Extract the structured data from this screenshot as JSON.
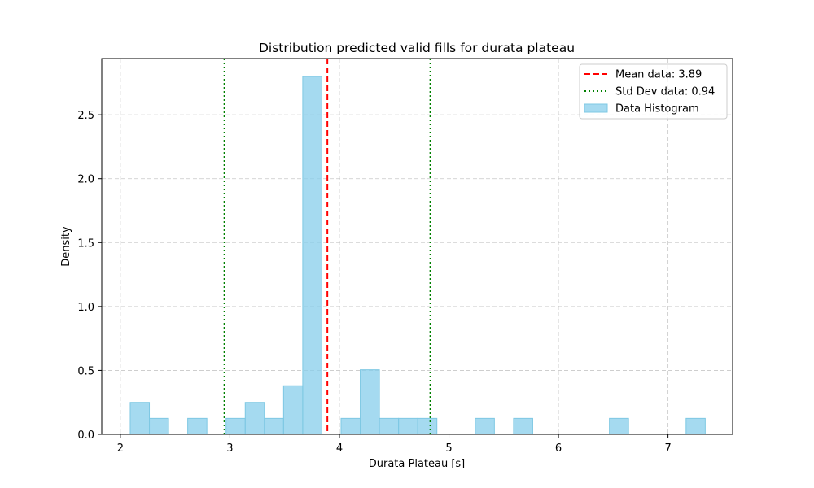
{
  "chart_data": {
    "type": "bar",
    "title": "Distribution predicted valid fills for durata plateau",
    "xlabel": "Durata Plateau [s]",
    "ylabel": "Density",
    "xlim": [
      1.83,
      7.59
    ],
    "ylim": [
      0,
      2.94
    ],
    "xticks": [
      2,
      3,
      4,
      5,
      6,
      7
    ],
    "yticks": [
      0.0,
      0.5,
      1.0,
      1.5,
      2.0,
      2.5
    ],
    "ytick_labels": [
      "0.0",
      "0.5",
      "1.0",
      "1.5",
      "2.0",
      "2.5"
    ],
    "grid": true,
    "legend_position": "top-right",
    "bin_width": 0.175,
    "bins": [
      {
        "x0": 2.09,
        "density": 0.25
      },
      {
        "x0": 2.265,
        "density": 0.125
      },
      {
        "x0": 2.44,
        "density": 0.0
      },
      {
        "x0": 2.615,
        "density": 0.125
      },
      {
        "x0": 2.79,
        "density": 0.0
      },
      {
        "x0": 2.965,
        "density": 0.125
      },
      {
        "x0": 3.14,
        "density": 0.25
      },
      {
        "x0": 3.315,
        "density": 0.125
      },
      {
        "x0": 3.49,
        "density": 0.38
      },
      {
        "x0": 3.665,
        "density": 2.8
      },
      {
        "x0": 3.84,
        "density": 0.0
      },
      {
        "x0": 4.015,
        "density": 0.125
      },
      {
        "x0": 4.19,
        "density": 0.505
      },
      {
        "x0": 4.365,
        "density": 0.125
      },
      {
        "x0": 4.54,
        "density": 0.125
      },
      {
        "x0": 4.715,
        "density": 0.125
      },
      {
        "x0": 4.89,
        "density": 0.0
      },
      {
        "x0": 5.065,
        "density": 0.0
      },
      {
        "x0": 5.24,
        "density": 0.125
      },
      {
        "x0": 5.415,
        "density": 0.0
      },
      {
        "x0": 5.59,
        "density": 0.125
      },
      {
        "x0": 5.765,
        "density": 0.0
      },
      {
        "x0": 5.94,
        "density": 0.0
      },
      {
        "x0": 6.115,
        "density": 0.0
      },
      {
        "x0": 6.29,
        "density": 0.0
      },
      {
        "x0": 6.465,
        "density": 0.125
      },
      {
        "x0": 6.64,
        "density": 0.0
      },
      {
        "x0": 6.815,
        "density": 0.0
      },
      {
        "x0": 6.99,
        "density": 0.0
      },
      {
        "x0": 7.165,
        "density": 0.125
      }
    ],
    "mean": 3.89,
    "std": 0.94,
    "std_lines": [
      2.95,
      4.83
    ],
    "legend": [
      {
        "label": "Mean data: 3.89",
        "style": "dashed",
        "color": "#ff0000"
      },
      {
        "label": "Std Dev data: 0.94",
        "style": "dotted",
        "color": "#008000"
      },
      {
        "label": "Data Histogram",
        "style": "patch",
        "color": "#87ceeb"
      }
    ],
    "colors": {
      "bar_fill": "#87ceeb",
      "bar_edge": "#7ec8e3",
      "mean_line": "#ff0000",
      "std_line": "#008000",
      "grid": "#b0b0b0"
    }
  }
}
